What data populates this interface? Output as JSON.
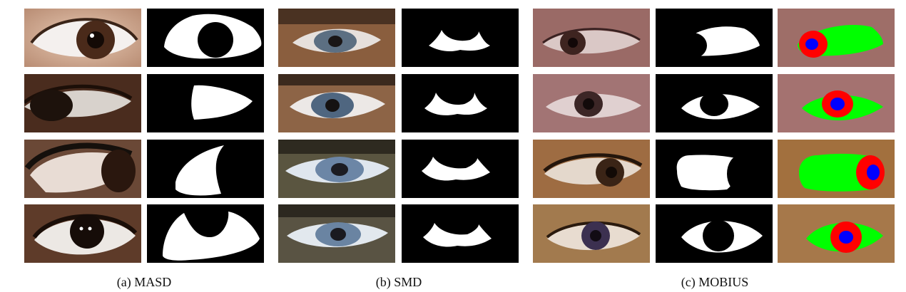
{
  "figure": {
    "captions": {
      "masd": "(a) MASD",
      "smd": "(b) SMD",
      "mobius": "(c) MOBIUS"
    },
    "colors": {
      "mask_background": "#000000",
      "mask_foreground": "#ffffff",
      "sclera_green": "#00ff00",
      "iris_red": "#ff0000",
      "pupil_blue": "#0000ff"
    }
  }
}
